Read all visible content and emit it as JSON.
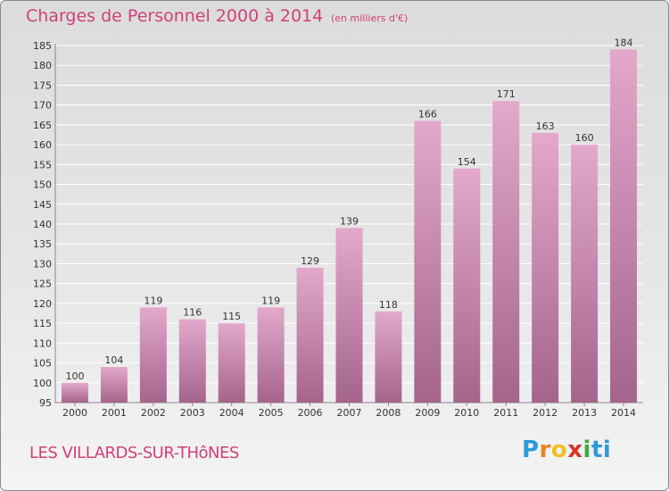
{
  "header": {
    "title": "Charges de Personnel 2000 à 2014",
    "subtitle": "(en milliers d'€)"
  },
  "footer": {
    "commune": "LES VILLARDS-SUR-THôNES",
    "logo_text": "Proxiti"
  },
  "colors": {
    "bar_top": "#e4a8cc",
    "bar_bottom": "#a4648c",
    "grid": "#ffffff",
    "title": "#d0407a"
  },
  "chart_data": {
    "type": "bar",
    "title": "Charges de Personnel 2000 à 2014",
    "subtitle": "(en milliers d'€)",
    "categories": [
      "2000",
      "2001",
      "2002",
      "2003",
      "2004",
      "2005",
      "2006",
      "2007",
      "2008",
      "2009",
      "2010",
      "2011",
      "2012",
      "2013",
      "2014"
    ],
    "values": [
      100,
      104,
      119,
      116,
      115,
      119,
      129,
      139,
      118,
      166,
      154,
      171,
      163,
      160,
      184
    ],
    "ylim": [
      95,
      185
    ],
    "ytick_step": 5,
    "grid": true
  }
}
